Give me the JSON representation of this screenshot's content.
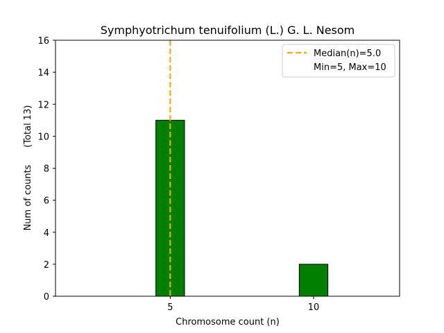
{
  "chart_data": {
    "type": "bar",
    "title": "Symphyotrichum tenuifolium (L.) G. L. Nesom",
    "xlabel": "Chromosome count (n)",
    "ylabel": "Num of counts      (Total 13)",
    "categories": [
      5,
      10
    ],
    "values": [
      11,
      2
    ],
    "xlim": [
      1,
      13
    ],
    "ylim": [
      0,
      16
    ],
    "xticks": [
      5,
      10
    ],
    "yticks": [
      0,
      2,
      4,
      6,
      8,
      10,
      12,
      14,
      16
    ],
    "bar_width": 1,
    "bar_color": "#008000",
    "bar_edge_color": "#000000",
    "median": 5.0,
    "median_color": "#FFA500",
    "legend": {
      "placement": "top-right",
      "entries": [
        "Median(n)=5.0",
        "Min=5, Max=10"
      ]
    },
    "grid": false
  }
}
